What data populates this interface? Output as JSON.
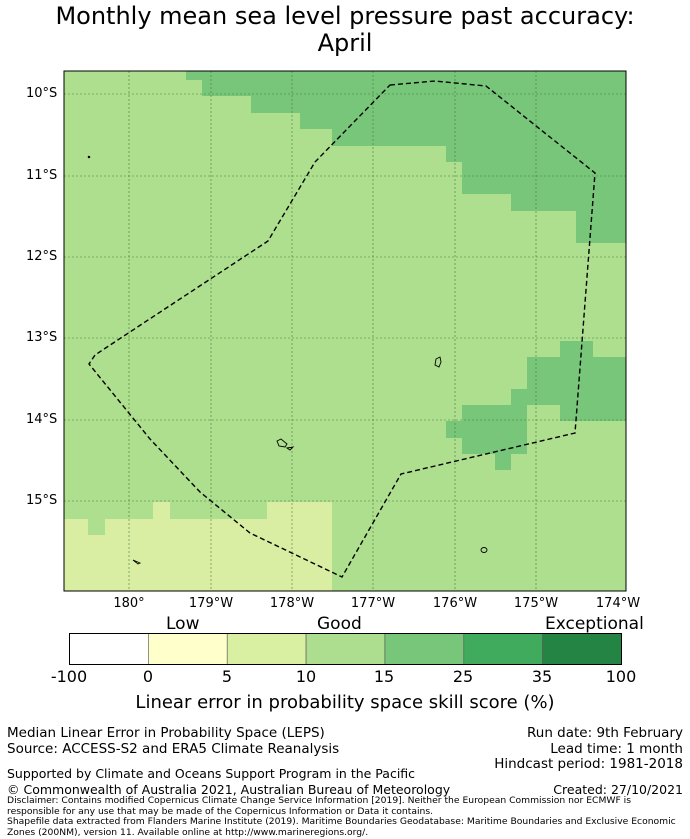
{
  "title": {
    "line1": "Monthly mean sea level pressure past accuracy:",
    "line2": "April"
  },
  "map": {
    "lat_labels": [
      "10°S",
      "11°S",
      "12°S",
      "13°S",
      "14°S",
      "15°S"
    ],
    "lon_labels": [
      "180°",
      "179°W",
      "178°W",
      "177°W",
      "176°W",
      "175°W",
      "174°W"
    ],
    "colors": {
      "low": "#d9eda3",
      "good": "#addf8e",
      "good_plus": "#78c679",
      "frame": "#000000",
      "grid": "#4a7a40"
    }
  },
  "colorbar": {
    "category_labels": [
      "Low",
      "Good",
      "Exceptional"
    ],
    "tick_labels": [
      "-100",
      "0",
      "5",
      "10",
      "15",
      "25",
      "35",
      "100"
    ],
    "colors": [
      "#ffffff",
      "#ffffcc",
      "#d9f0a3",
      "#addd8e",
      "#78c679",
      "#41ab5d",
      "#238443"
    ],
    "label": "Linear error in probability space skill score (%)"
  },
  "info": {
    "metric": "Median Linear Error in Probability Space (LEPS)",
    "source": "Source: ACCESS-S2 and ERA5 Climate Reanalysis",
    "run_date": "Run date: 9th February",
    "lead_time": "Lead time: 1 month",
    "hindcast": "Hindcast period: 1981-2018",
    "support": "Supported by Climate and Oceans Support Program in the Pacific",
    "copyright": "© Commonwealth of Australia 2021, Australian Bureau of Meteorology",
    "created": "Created: 27/10/2021",
    "disclaimer": "Disclaimer: Contains modified Copernicus Climate Change Service Information [2019]. Neither the European Commission nor ECMWF is responsible for any use that may be made of the Copernicus Information or Data it contains.",
    "shapefile": "Shapefile data extracted from Flanders Marine Institute (2019). Maritime Boundaries Geodatabase: Maritime Boundaries and Exclusive Economic Zones (200NM), version 11. Available online at http://www.marineregions.org/."
  }
}
